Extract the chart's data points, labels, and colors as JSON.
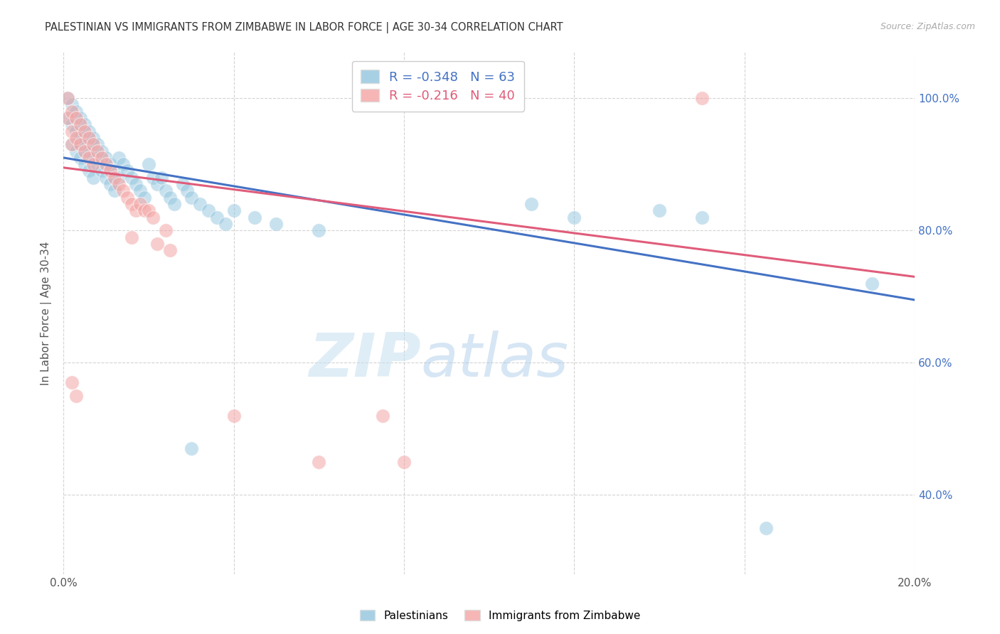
{
  "title": "PALESTINIAN VS IMMIGRANTS FROM ZIMBABWE IN LABOR FORCE | AGE 30-34 CORRELATION CHART",
  "source": "Source: ZipAtlas.com",
  "ylabel": "In Labor Force | Age 30-34",
  "xlim": [
    0.0,
    0.2
  ],
  "ylim": [
    0.28,
    1.07
  ],
  "x_ticks": [
    0.0,
    0.04,
    0.08,
    0.12,
    0.16,
    0.2
  ],
  "x_tick_labels": [
    "0.0%",
    "",
    "",
    "",
    "",
    "20.0%"
  ],
  "y_ticks": [
    0.4,
    0.6,
    0.8,
    1.0
  ],
  "y_tick_labels": [
    "40.0%",
    "60.0%",
    "80.0%",
    "100.0%"
  ],
  "blue_R": -0.348,
  "blue_N": 63,
  "pink_R": -0.216,
  "pink_N": 40,
  "blue_color": "#92c5de",
  "pink_color": "#f4a4a4",
  "blue_line_color": "#4472c4",
  "pink_line_color": "#e05c7a",
  "blue_scatter": [
    [
      0.001,
      1.0
    ],
    [
      0.001,
      0.97
    ],
    [
      0.002,
      0.99
    ],
    [
      0.002,
      0.96
    ],
    [
      0.002,
      0.93
    ],
    [
      0.003,
      0.98
    ],
    [
      0.003,
      0.95
    ],
    [
      0.003,
      0.92
    ],
    [
      0.004,
      0.97
    ],
    [
      0.004,
      0.94
    ],
    [
      0.004,
      0.91
    ],
    [
      0.005,
      0.96
    ],
    [
      0.005,
      0.93
    ],
    [
      0.005,
      0.9
    ],
    [
      0.006,
      0.95
    ],
    [
      0.006,
      0.92
    ],
    [
      0.006,
      0.89
    ],
    [
      0.007,
      0.94
    ],
    [
      0.007,
      0.91
    ],
    [
      0.007,
      0.88
    ],
    [
      0.008,
      0.93
    ],
    [
      0.008,
      0.9
    ],
    [
      0.009,
      0.92
    ],
    [
      0.009,
      0.89
    ],
    [
      0.01,
      0.91
    ],
    [
      0.01,
      0.88
    ],
    [
      0.011,
      0.9
    ],
    [
      0.011,
      0.87
    ],
    [
      0.012,
      0.89
    ],
    [
      0.012,
      0.86
    ],
    [
      0.013,
      0.91
    ],
    [
      0.013,
      0.88
    ],
    [
      0.014,
      0.9
    ],
    [
      0.015,
      0.89
    ],
    [
      0.016,
      0.88
    ],
    [
      0.017,
      0.87
    ],
    [
      0.018,
      0.86
    ],
    [
      0.019,
      0.85
    ],
    [
      0.02,
      0.9
    ],
    [
      0.021,
      0.88
    ],
    [
      0.022,
      0.87
    ],
    [
      0.023,
      0.88
    ],
    [
      0.024,
      0.86
    ],
    [
      0.025,
      0.85
    ],
    [
      0.026,
      0.84
    ],
    [
      0.028,
      0.87
    ],
    [
      0.029,
      0.86
    ],
    [
      0.03,
      0.85
    ],
    [
      0.032,
      0.84
    ],
    [
      0.034,
      0.83
    ],
    [
      0.036,
      0.82
    ],
    [
      0.038,
      0.81
    ],
    [
      0.04,
      0.83
    ],
    [
      0.045,
      0.82
    ],
    [
      0.05,
      0.81
    ],
    [
      0.06,
      0.8
    ],
    [
      0.03,
      0.47
    ],
    [
      0.11,
      0.84
    ],
    [
      0.12,
      0.82
    ],
    [
      0.14,
      0.83
    ],
    [
      0.15,
      0.82
    ],
    [
      0.165,
      0.35
    ],
    [
      0.19,
      0.72
    ]
  ],
  "pink_scatter": [
    [
      0.001,
      1.0
    ],
    [
      0.001,
      0.97
    ],
    [
      0.002,
      0.98
    ],
    [
      0.002,
      0.95
    ],
    [
      0.002,
      0.93
    ],
    [
      0.003,
      0.97
    ],
    [
      0.003,
      0.94
    ],
    [
      0.004,
      0.96
    ],
    [
      0.004,
      0.93
    ],
    [
      0.005,
      0.95
    ],
    [
      0.005,
      0.92
    ],
    [
      0.006,
      0.94
    ],
    [
      0.006,
      0.91
    ],
    [
      0.007,
      0.93
    ],
    [
      0.007,
      0.9
    ],
    [
      0.008,
      0.92
    ],
    [
      0.009,
      0.91
    ],
    [
      0.01,
      0.9
    ],
    [
      0.011,
      0.89
    ],
    [
      0.012,
      0.88
    ],
    [
      0.013,
      0.87
    ],
    [
      0.014,
      0.86
    ],
    [
      0.015,
      0.85
    ],
    [
      0.016,
      0.84
    ],
    [
      0.017,
      0.83
    ],
    [
      0.018,
      0.84
    ],
    [
      0.019,
      0.83
    ],
    [
      0.02,
      0.83
    ],
    [
      0.021,
      0.82
    ],
    [
      0.024,
      0.8
    ],
    [
      0.002,
      0.57
    ],
    [
      0.003,
      0.55
    ],
    [
      0.06,
      0.45
    ],
    [
      0.08,
      0.45
    ],
    [
      0.04,
      0.52
    ],
    [
      0.075,
      0.52
    ],
    [
      0.15,
      1.0
    ],
    [
      0.016,
      0.79
    ],
    [
      0.022,
      0.78
    ],
    [
      0.025,
      0.77
    ]
  ],
  "blue_trendline": [
    [
      0.0,
      0.91
    ],
    [
      0.2,
      0.695
    ]
  ],
  "pink_trendline": [
    [
      0.0,
      0.895
    ],
    [
      0.2,
      0.73
    ]
  ],
  "watermark_zip": "ZIP",
  "watermark_atlas": "atlas",
  "legend_blue_label": "Palestinians",
  "legend_pink_label": "Immigrants from Zimbabwe",
  "background_color": "#ffffff",
  "grid_color": "#c8c8c8"
}
